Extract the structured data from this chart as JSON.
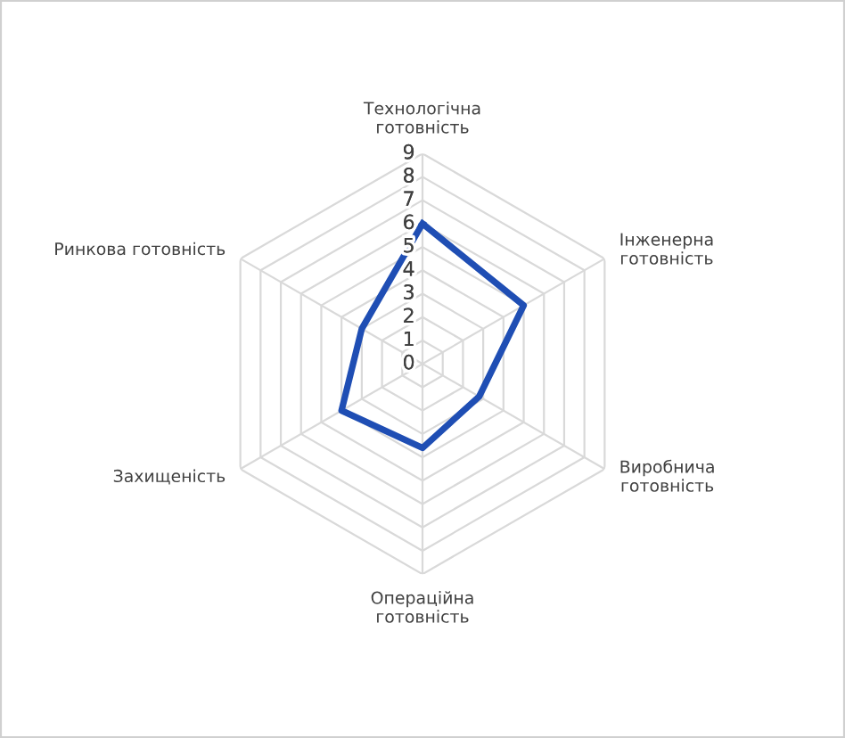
{
  "chart_data": {
    "type": "radar",
    "categories": [
      "Технологічна\nготовність",
      "Інженерна\nготовність",
      "Виробнича\nготовність",
      "Операційна\nготовність",
      "Захищеність",
      "Ринкова готовність"
    ],
    "series": [
      {
        "color": "#1f4eb4",
        "values": [
          6,
          5,
          2.8,
          3.6,
          4,
          3
        ]
      }
    ],
    "ylim": [
      0,
      9
    ],
    "yticks": [
      0,
      1,
      2,
      3,
      4,
      5,
      6,
      7,
      8,
      9
    ],
    "grid": true,
    "marker": "none",
    "line_style": "solid"
  }
}
